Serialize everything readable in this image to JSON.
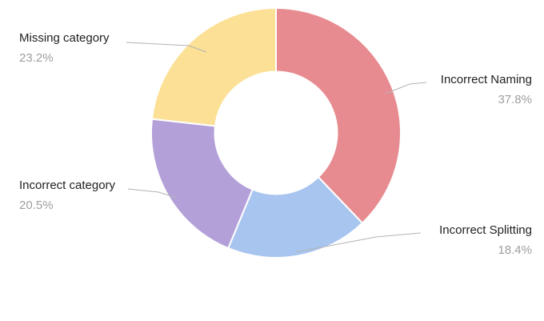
{
  "chart_data": {
    "type": "pie",
    "title": "",
    "labels": [
      "Incorrect Naming",
      "Incorrect Splitting",
      "Incorrect category",
      "Missing category"
    ],
    "values": [
      37.8,
      18.4,
      20.5,
      23.2
    ],
    "value_labels": [
      "37.8%",
      "18.4%",
      "20.5%",
      "23.2%"
    ],
    "colors": [
      "#e78b90",
      "#a8c5f0",
      "#b3a0d8",
      "#fbe095"
    ],
    "hole": 0.49,
    "start_angle": "top",
    "direction": "clockwise",
    "legend_position": "none",
    "background": "#ffffff"
  },
  "style": {
    "label_text_color": "#1f1f1f",
    "pct_text_color": "#9e9e9e",
    "leader_line_color": "#b3b3b3",
    "segment_gap_color": "#ffffff"
  }
}
